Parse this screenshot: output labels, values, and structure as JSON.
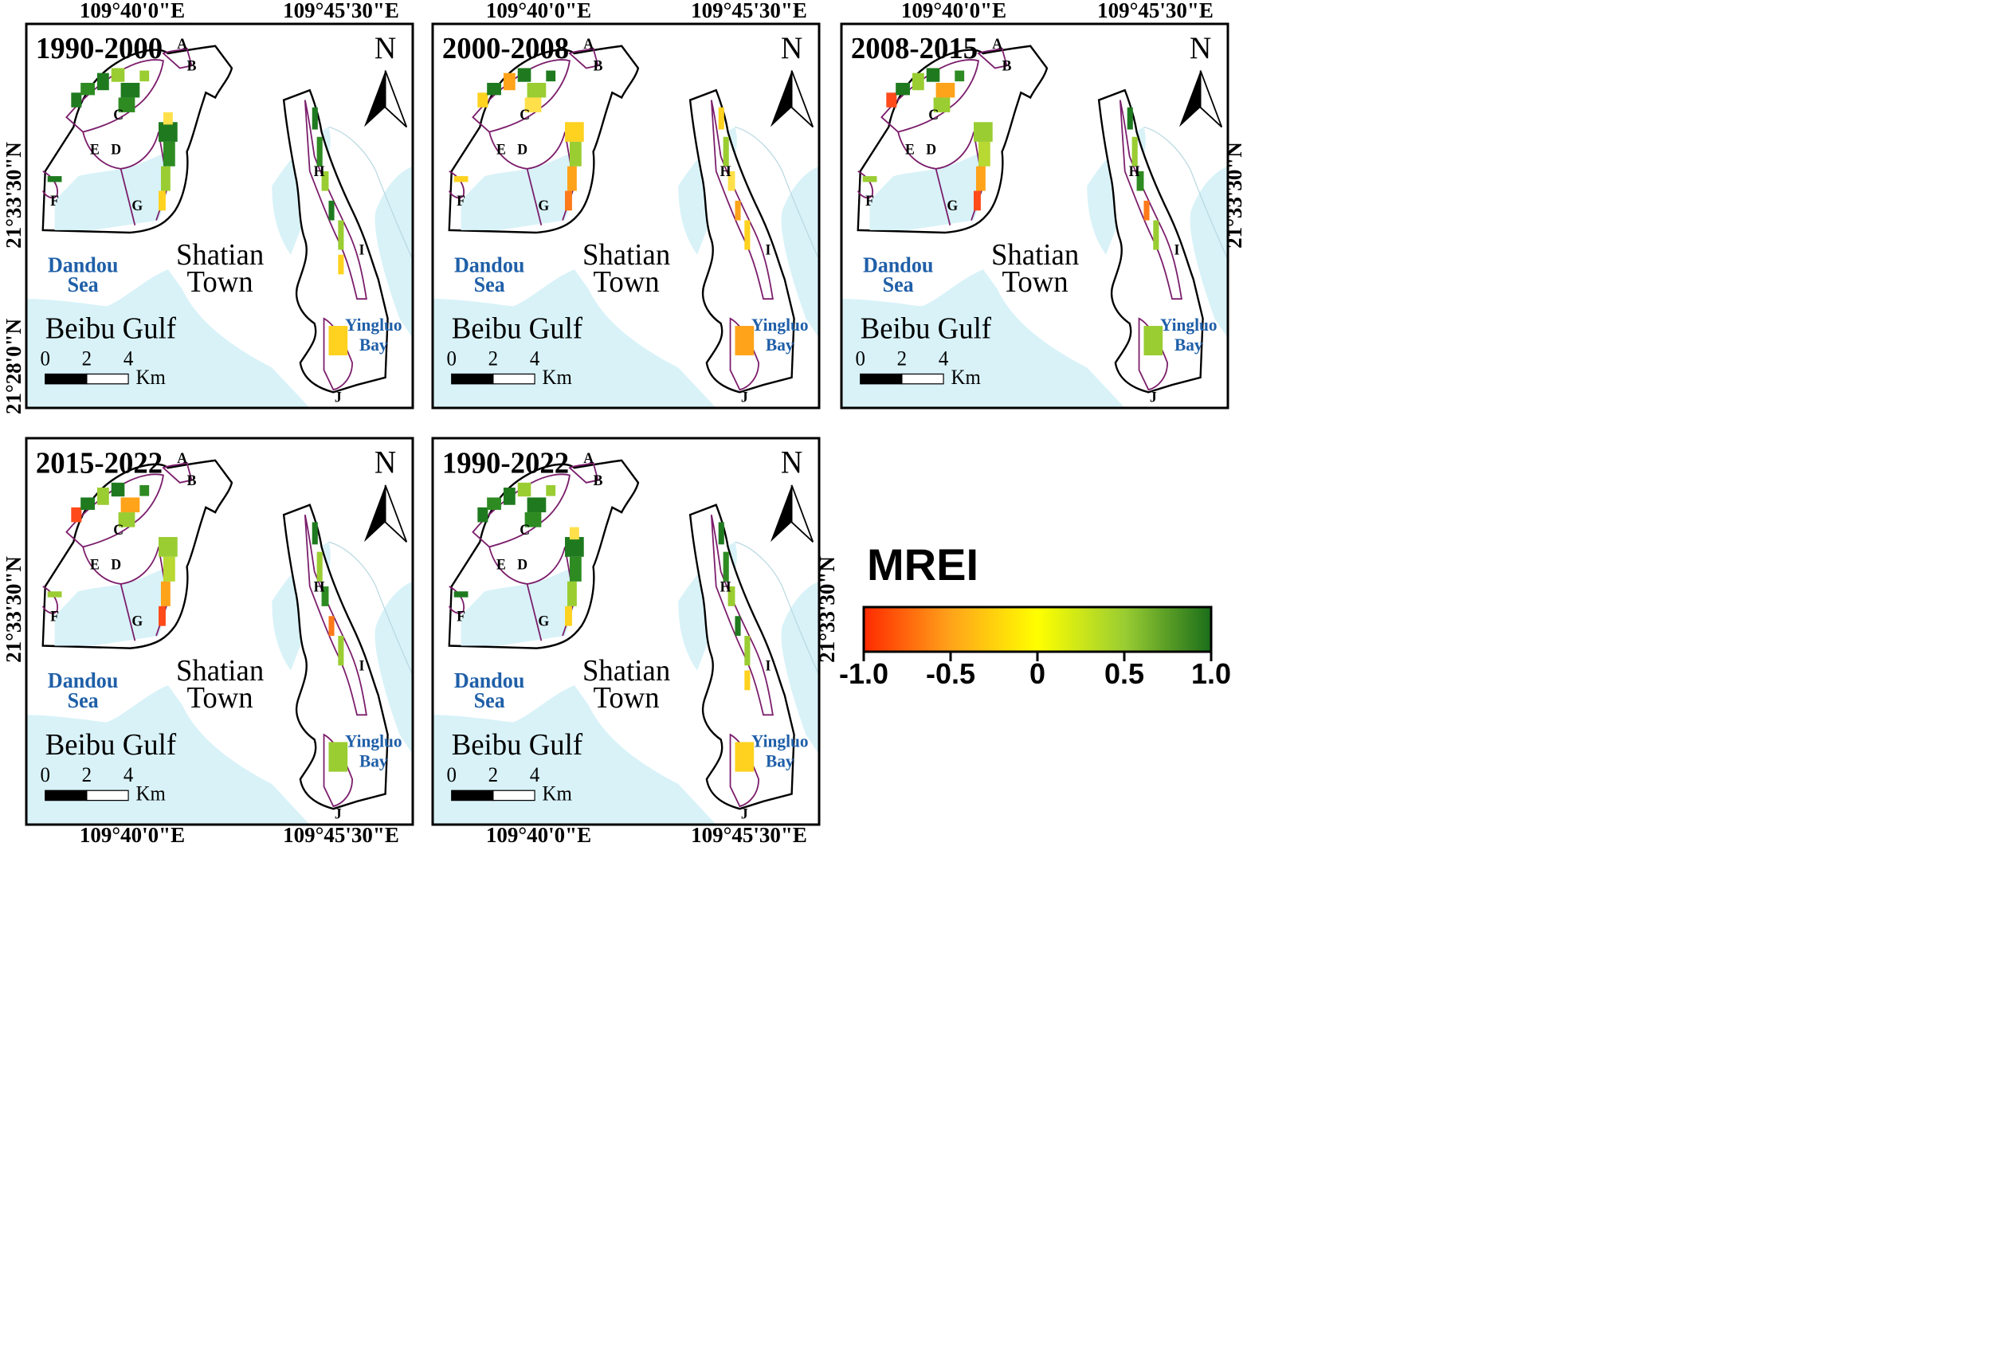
{
  "figure": {
    "coordinates": {
      "lon_west": "109°40'0\"E",
      "lon_east": "109°45'30\"E",
      "lat_north": "21°33'30\"N",
      "lat_south": "21°28'0\"N"
    },
    "colors": {
      "sea": "#d8f2f8",
      "land": "#ffffff",
      "boundary": "#000000",
      "zone_line": "#7b1d6b",
      "water_label": "#1f5fa8",
      "green_dark": "#1f7a1f",
      "green_light": "#9acd32",
      "yellow": "#ffff33",
      "orange": "#ffa31a",
      "red": "#ff2a00"
    },
    "panel_labels": {
      "north": "N",
      "place_shatian_line1": "Shatian",
      "place_shatian_line2": "Town",
      "place_beibu": "Beibu Gulf",
      "water_dandou_line1": "Dandou",
      "water_dandou_line2": "Sea",
      "water_yingluo_line1": "Yingluo",
      "water_yingluo_line2": "Bay",
      "scale_ticks": [
        "0",
        "2",
        "4"
      ],
      "scale_unit": "Km",
      "zones": [
        "A",
        "B",
        "C",
        "D",
        "E",
        "F",
        "G",
        "H",
        "I",
        "J"
      ]
    },
    "panels": [
      {
        "period": "1990-2000",
        "dominant": "green"
      },
      {
        "period": "2000-2008",
        "dominant": "yellow"
      },
      {
        "period": "2008-2015",
        "dominant": "mixed"
      },
      {
        "period": "2015-2022",
        "dominant": "mixed"
      },
      {
        "period": "1990-2022",
        "dominant": "green"
      }
    ],
    "legend": {
      "title": "MREI",
      "ticks": [
        "-1.0",
        "-0.5",
        "0",
        "0.5",
        "1.0"
      ],
      "gradient": [
        "#ff2a00",
        "#ffa31a",
        "#ffff00",
        "#9acd32",
        "#1a6e1a"
      ]
    }
  }
}
